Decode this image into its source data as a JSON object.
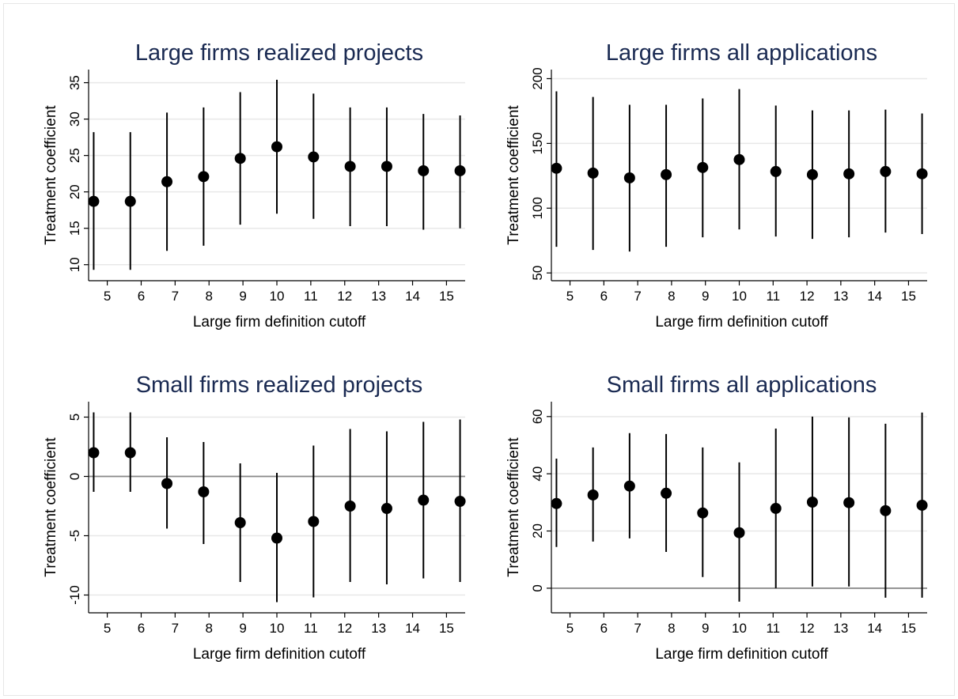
{
  "chart_data": [
    {
      "type": "errorbar",
      "title": "Large firms realized projects",
      "x_label": "Large firm definition cutoff",
      "y_label": "Treatment coefficient",
      "x": [
        4.6,
        5.68,
        6.76,
        7.84,
        8.92,
        10,
        11.08,
        12.16,
        13.24,
        14.32,
        15.4
      ],
      "values": [
        18.7,
        18.7,
        21.4,
        22.1,
        24.6,
        26.2,
        24.8,
        23.5,
        23.5,
        22.9,
        22.9
      ],
      "lower": [
        9.3,
        9.3,
        11.9,
        12.6,
        15.5,
        17.0,
        16.3,
        15.3,
        15.3,
        14.8,
        15.0
      ],
      "upper": [
        28.2,
        28.2,
        30.9,
        31.6,
        33.7,
        35.4,
        33.5,
        31.6,
        31.6,
        30.7,
        30.5
      ],
      "color": "#000000",
      "xlim": [
        4.45,
        15.55
      ],
      "xticks": [
        5,
        6,
        7,
        8,
        9,
        10,
        11,
        12,
        13,
        14,
        15
      ],
      "ylim": [
        7.8,
        36.8
      ],
      "yticks": [
        10,
        15,
        20,
        25,
        30,
        35
      ],
      "grid": true
    },
    {
      "type": "errorbar",
      "title": "Large firms all applications",
      "x_label": "Large firm definition cutoff",
      "y_label": "Treatment coefficient",
      "x": [
        4.6,
        5.68,
        6.76,
        7.84,
        8.92,
        10,
        11.08,
        12.16,
        13.24,
        14.32,
        15.4
      ],
      "values": [
        130.8,
        127.1,
        123.4,
        125.9,
        131.4,
        137.5,
        128.3,
        125.9,
        126.5,
        128.3,
        126.5
      ],
      "lower": [
        70.2,
        67.7,
        66.5,
        70.2,
        77.5,
        83.6,
        78.1,
        76.3,
        77.5,
        81.2,
        80.0
      ],
      "upper": [
        190.2,
        185.9,
        179.8,
        179.8,
        184.7,
        192.0,
        179.2,
        175.5,
        175.5,
        176.1,
        173.1
      ],
      "color": "#000000",
      "xlim": [
        4.45,
        15.55
      ],
      "xticks": [
        5,
        6,
        7,
        8,
        9,
        10,
        11,
        12,
        13,
        14,
        15
      ],
      "ylim": [
        44,
        207
      ],
      "yticks": [
        50,
        100,
        150,
        200
      ],
      "grid": true
    },
    {
      "type": "errorbar",
      "title": "Small firms realized projects",
      "x_label": "Large firm definition cutoff",
      "y_label": "Treatment coefficient",
      "x": [
        4.6,
        5.68,
        6.76,
        7.84,
        8.92,
        10,
        11.08,
        12.16,
        13.24,
        14.32,
        15.4
      ],
      "values": [
        2.0,
        2.0,
        -0.6,
        -1.3,
        -3.9,
        -5.2,
        -3.8,
        -2.5,
        -2.7,
        -2.0,
        -2.1
      ],
      "lower": [
        -1.3,
        -1.3,
        -4.4,
        -5.7,
        -8.9,
        -10.6,
        -10.2,
        -8.9,
        -9.1,
        -8.6,
        -8.9
      ],
      "upper": [
        5.4,
        5.4,
        3.3,
        2.9,
        1.1,
        0.3,
        2.6,
        4.0,
        3.8,
        4.6,
        4.8
      ],
      "color": "#000000",
      "xlim": [
        4.45,
        15.55
      ],
      "xticks": [
        5,
        6,
        7,
        8,
        9,
        10,
        11,
        12,
        13,
        14,
        15
      ],
      "ylim": [
        -11.5,
        6.3
      ],
      "yticks": [
        -10,
        -5,
        0,
        5
      ],
      "grid": true,
      "reference_line": 0
    },
    {
      "type": "errorbar",
      "title": "Small firms all applications",
      "x_label": "Large firm definition cutoff",
      "y_label": "Treatment coefficient",
      "x": [
        4.6,
        5.68,
        6.76,
        7.84,
        8.92,
        10,
        11.08,
        12.16,
        13.24,
        14.32,
        15.4
      ],
      "values": [
        29.6,
        32.6,
        35.7,
        33.2,
        26.3,
        19.4,
        27.9,
        30.1,
        29.9,
        27.1,
        29.0
      ],
      "lower": [
        14.4,
        16.3,
        17.4,
        12.7,
        3.9,
        -4.7,
        0.0,
        0.6,
        0.6,
        -3.3,
        -3.3
      ],
      "upper": [
        45.3,
        49.2,
        54.2,
        53.9,
        49.2,
        44.0,
        55.8,
        60.0,
        59.7,
        57.5,
        61.4
      ],
      "color": "#000000",
      "xlim": [
        4.45,
        15.55
      ],
      "xticks": [
        5,
        6,
        7,
        8,
        9,
        10,
        11,
        12,
        13,
        14,
        15
      ],
      "ylim": [
        -8.6,
        65.2
      ],
      "yticks": [
        0,
        20,
        40,
        60
      ],
      "grid": true,
      "reference_line": 0
    }
  ]
}
